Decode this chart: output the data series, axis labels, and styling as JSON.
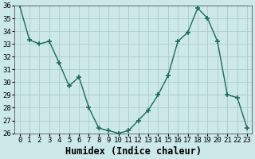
{
  "x": [
    0,
    1,
    2,
    3,
    4,
    5,
    6,
    7,
    8,
    9,
    10,
    11,
    12,
    13,
    14,
    15,
    16,
    17,
    18,
    19,
    20,
    21,
    22,
    23
  ],
  "y": [
    36,
    33.3,
    33.0,
    33.2,
    31.5,
    29.7,
    30.4,
    28.0,
    26.4,
    26.2,
    26.0,
    26.2,
    27.0,
    27.8,
    29.0,
    30.5,
    33.2,
    33.9,
    35.8,
    35.0,
    33.2,
    29.0,
    28.8,
    26.4
  ],
  "line_color": "#1a6b5a",
  "marker": "+",
  "marker_size": 4,
  "marker_lw": 1.2,
  "bg_color": "#cce8e8",
  "grid_color": "#aacccc",
  "xlabel": "Humidex (Indice chaleur)",
  "ylim": [
    26,
    36
  ],
  "xlim": [
    -0.5,
    23.5
  ],
  "yticks": [
    26,
    27,
    28,
    29,
    30,
    31,
    32,
    33,
    34,
    35,
    36
  ],
  "xticks": [
    0,
    1,
    2,
    3,
    4,
    5,
    6,
    7,
    8,
    9,
    10,
    11,
    12,
    13,
    14,
    15,
    16,
    17,
    18,
    19,
    20,
    21,
    22,
    23
  ],
  "tick_fontsize": 6.5,
  "xlabel_fontsize": 8.5,
  "linewidth": 1.0
}
